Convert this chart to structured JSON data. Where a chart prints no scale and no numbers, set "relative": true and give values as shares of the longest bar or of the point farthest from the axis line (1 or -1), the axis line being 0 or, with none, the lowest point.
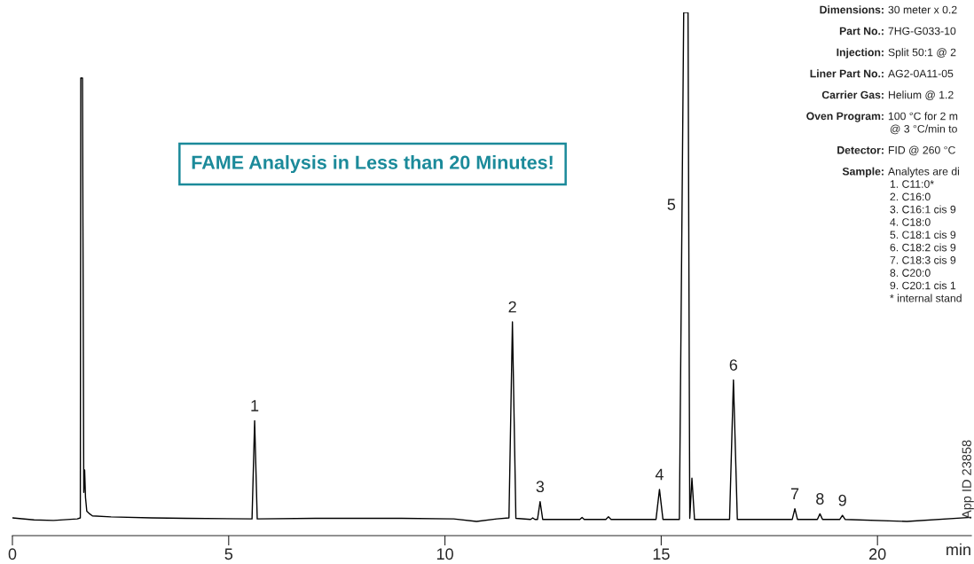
{
  "chart_data": {
    "type": "line",
    "relative": true,
    "title": "FAME Analysis in Less than 20 Minutes!",
    "xlabel": "min",
    "xlim": [
      0,
      22.17
    ],
    "xticks": [
      0,
      5,
      10,
      15,
      20
    ],
    "tick_labels": "x",
    "grid": false,
    "legend": false,
    "marker": "none",
    "line_style": "solid",
    "series": [
      {
        "color": "#000000",
        "x": [
          0,
          0.5,
          0.95,
          1.5,
          1.57,
          1.58,
          1.62,
          1.65,
          1.67,
          1.69,
          1.72,
          1.77,
          1.85,
          2.28,
          3.22,
          4,
          5.54,
          5.6,
          5.66,
          7,
          9,
          10.2,
          10.73,
          11.2,
          11.48,
          11.56,
          11.64,
          11.98,
          12.03,
          12.08,
          12.14,
          12.2,
          12.26,
          13.12,
          13.17,
          13.22,
          13.72,
          13.78,
          13.84,
          14.88,
          14.96,
          15.04,
          15.42,
          15.52,
          15.62,
          15.66,
          15.71,
          15.77,
          16.58,
          16.67,
          16.76,
          18.03,
          18.09,
          18.15,
          18.61,
          18.67,
          18.73,
          19.13,
          19.19,
          19.25,
          20.68,
          22.17
        ],
        "values": [
          0.007,
          0.003,
          0.002,
          0.005,
          0.007,
          0.871,
          0.871,
          0.057,
          0.101,
          0.047,
          0.02,
          0.016,
          0.011,
          0.009,
          0.007,
          0.006,
          0.005,
          0.198,
          0.005,
          0.006,
          0.006,
          0.005,
          0,
          0.005,
          0.007,
          0.392,
          0.006,
          0.004,
          0.007,
          0.004,
          0.004,
          0.039,
          0.004,
          0.004,
          0.008,
          0.004,
          0.004,
          0.009,
          0.004,
          0.004,
          0.063,
          0.004,
          0.004,
          1.0,
          1.0,
          0.006,
          0.085,
          0.004,
          0.004,
          0.278,
          0.004,
          0.004,
          0.025,
          0.004,
          0.004,
          0.015,
          0.004,
          0.004,
          0.012,
          0.004,
          0,
          0.008
        ]
      }
    ],
    "annotations": [
      {
        "text": "1",
        "x": 5.6,
        "y": 0.198
      },
      {
        "text": "2",
        "x": 11.56,
        "y": 0.392
      },
      {
        "text": "3",
        "x": 12.2,
        "y": 0.039
      },
      {
        "text": "4",
        "x": 14.96,
        "y": 0.063
      },
      {
        "text": "5",
        "x": 15.48,
        "y": 0.62
      },
      {
        "text": "6",
        "x": 16.67,
        "y": 0.278
      },
      {
        "text": "7",
        "x": 18.09,
        "y": 0.025
      },
      {
        "text": "8",
        "x": 18.67,
        "y": 0.015
      },
      {
        "text": "9",
        "x": 19.19,
        "y": 0.012
      },
      "Dimensions: 30 meter x 0.2",
      "Part No.: 7HG-G033-10",
      "Injection: Split 50:1 @ 2",
      "Liner Part No.: AG2-0A11-05",
      "Carrier Gas: Helium @ 1.2",
      "Oven Program: 100 °C for 2 m",
      "@ 3 °C/min to",
      "Detector: FID @ 260 °C",
      "Sample: Analytes are di",
      "1. C11:0*",
      "2. C16:0",
      "3. C16:1 cis 9",
      "4. C18:0",
      "5. C18:1 cis 9",
      "6. C18:2 cis 9",
      "7. C18:3 cis 9",
      "8. C20:0",
      "9. C20:1 cis 1",
      "* internal stand",
      "App ID 23858"
    ]
  }
}
